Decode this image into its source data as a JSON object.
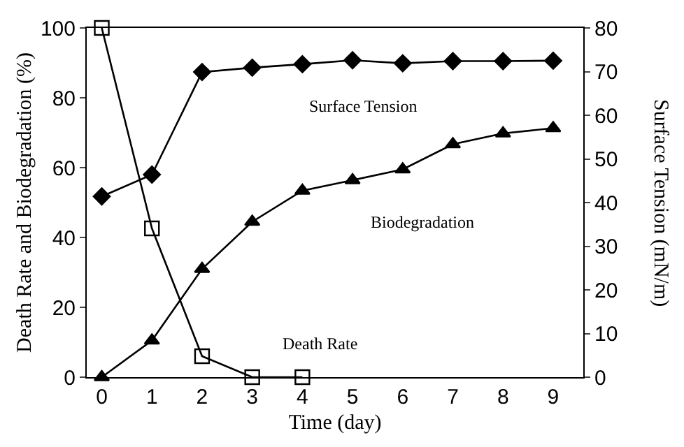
{
  "chart_data": {
    "type": "line",
    "xlabel": "Time (day)",
    "ylabel": "Death Rate and Biodegradation (%)",
    "y2label": "Surface Tension (mN/m)",
    "x": [
      0,
      1,
      2,
      3,
      4,
      5,
      6,
      7,
      8,
      9
    ],
    "series": [
      {
        "name": "Surface Tension",
        "color": "#000000",
        "marker": "diamond",
        "axis": "y2",
        "values": [
          41.4,
          46.4,
          69.9,
          70.9,
          71.7,
          72.6,
          71.9,
          72.4,
          72.4,
          72.5
        ]
      },
      {
        "name": "Biodegradation",
        "color": "#000000",
        "marker": "triangle",
        "values": [
          0,
          10.5,
          31,
          44.5,
          53.4,
          56.4,
          59.5,
          66.7,
          69.8,
          71.3
        ]
      },
      {
        "name": "Death Rate",
        "color": "#000000",
        "marker": "square",
        "x": [
          0,
          1,
          2,
          3,
          4
        ],
        "values": [
          100,
          42.6,
          6,
          0,
          0
        ]
      }
    ],
    "xlim": [
      -0.3,
      9.6
    ],
    "xticks": [
      0,
      1,
      2,
      3,
      4,
      5,
      6,
      7,
      8,
      9
    ],
    "ylim": [
      0,
      100
    ],
    "yticks": [
      0,
      20,
      40,
      60,
      80,
      100
    ],
    "y2lim": [
      0,
      80
    ],
    "y2ticks": [
      0,
      10,
      20,
      30,
      40,
      50,
      60,
      70,
      80
    ],
    "legend": false,
    "line_style": "solid"
  }
}
